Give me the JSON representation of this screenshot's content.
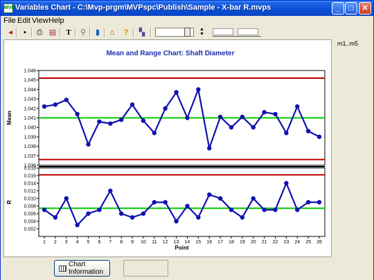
{
  "window": {
    "title": "Variables Chart - C:\\Mvp-prgm\\MVPspc\\Publish\\Sample -  X-bar R.mvps",
    "icon_label": "MVP",
    "min_glyph": "_",
    "max_glyph": "□",
    "close_glyph": "✕"
  },
  "menu": [
    "File",
    "Edit",
    "View",
    "Help"
  ],
  "toolbar": {
    "icons": [
      "exit-icon",
      "save-icon",
      "print-icon",
      "print-preview-icon",
      "text-icon",
      "zoom-icon",
      "colors-icon",
      "home-icon",
      "help-icon",
      "door-icon"
    ],
    "glyphs": [
      "◂",
      "▪",
      "⎙",
      "▤",
      "T",
      "⚲",
      "▮",
      "⌂",
      "?",
      "▚"
    ]
  },
  "side_label": "m1..m5",
  "status": {
    "chart_info_label": "Chart Information"
  },
  "chart_data": [
    {
      "type": "line",
      "title": "Mean and Range Chart: Shaft Diameter",
      "ylabel": "Mean",
      "xlabel": "",
      "ylim": [
        1.036,
        1.046
      ],
      "yticks": [
        "1.036",
        "1.037",
        "1.038",
        "1.039",
        "1.040",
        "1.041",
        "1.042",
        "1.043",
        "1.044",
        "1.045",
        "1.046"
      ],
      "x": [
        1,
        2,
        3,
        4,
        5,
        6,
        7,
        8,
        9,
        10,
        11,
        12,
        13,
        14,
        15,
        16,
        17,
        18,
        19,
        20,
        21,
        22,
        23,
        24,
        25,
        26
      ],
      "series": [
        {
          "values": [
            1.0422,
            1.0424,
            1.0429,
            1.0414,
            1.0382,
            1.0406,
            1.0404,
            1.0408,
            1.0424,
            1.0407,
            1.0394,
            1.042,
            1.0437,
            1.041,
            1.044,
            1.0378,
            1.0411,
            1.04,
            1.0411,
            1.04,
            1.0416,
            1.0414,
            1.0394,
            1.0422,
            1.0396,
            1.039
          ]
        }
      ],
      "ucl": 1.0452,
      "center": 1.041,
      "lcl": 1.0366,
      "colors": {
        "series": "#1010b0",
        "limits": "#c00000",
        "center": "#00cc00"
      }
    },
    {
      "type": "line",
      "title": "",
      "ylabel": "R",
      "xlabel": "Point",
      "ylim": [
        0.0,
        0.018
      ],
      "yticks": [
        "0.002",
        "0.004",
        "0.006",
        "0.008",
        "0.010",
        "0.012",
        "0.014",
        "0.016",
        "0.018"
      ],
      "x": [
        1,
        2,
        3,
        4,
        5,
        6,
        7,
        8,
        9,
        10,
        11,
        12,
        13,
        14,
        15,
        16,
        17,
        18,
        19,
        20,
        21,
        22,
        23,
        24,
        25,
        26
      ],
      "xticks": [
        "1",
        "2",
        "3",
        "4",
        "5",
        "6",
        "7",
        "8",
        "9",
        "10",
        "11",
        "12",
        "13",
        "14",
        "15",
        "16",
        "17",
        "18",
        "19",
        "20",
        "21",
        "22",
        "23",
        "24",
        "25",
        "26"
      ],
      "series": [
        {
          "values": [
            0.007,
            0.005,
            0.01,
            0.003,
            0.006,
            0.007,
            0.012,
            0.006,
            0.005,
            0.006,
            0.009,
            0.009,
            0.004,
            0.008,
            0.005,
            0.011,
            0.01,
            0.007,
            0.005,
            0.01,
            0.007,
            0.007,
            0.014,
            0.007,
            0.009,
            0.009
          ]
        }
      ],
      "ucl": 0.0162,
      "center": 0.0074,
      "colors": {
        "series": "#1010b0",
        "limits": "#c00000",
        "center": "#00cc00"
      }
    }
  ]
}
